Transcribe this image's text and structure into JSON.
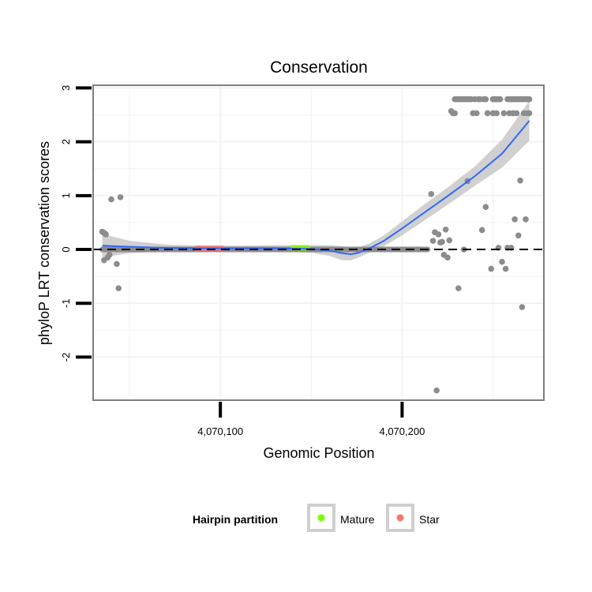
{
  "chart_data": {
    "type": "scatter",
    "title": "Conservation",
    "xlabel": "Genomic Position",
    "ylabel": "phyloP LRT conservation scores",
    "xlim": [
      4070030,
      4070278
    ],
    "ylim": [
      -2.8,
      3.05
    ],
    "x_ticks": [
      {
        "value": 4070100,
        "label": "4,070,100"
      },
      {
        "value": 4070200,
        "label": "4,070,200"
      }
    ],
    "y_ticks": [
      {
        "value": 3,
        "label": "3"
      },
      {
        "value": 2,
        "label": "2"
      },
      {
        "value": 1,
        "label": "1"
      },
      {
        "value": 0,
        "label": "0"
      },
      {
        "value": -1,
        "label": "-1"
      },
      {
        "value": -2,
        "label": "-2"
      }
    ],
    "grid": true,
    "reference_line": {
      "y": 0,
      "style": "dashed"
    },
    "colors": {
      "points": "#8c8c8c",
      "smooth": "#3366ff",
      "ribbon": "#c8c8c8",
      "mature": "#7cfc00",
      "star": "#f8766d",
      "panel_border": "#7f7f7f",
      "grid": "#f2f2f2"
    },
    "legend": {
      "title": "Hairpin partition",
      "position": "bottom",
      "entries": [
        {
          "label": "Mature",
          "color": "#7cfc00"
        },
        {
          "label": "Star",
          "color": "#f8766d"
        }
      ]
    },
    "partitions": [
      {
        "name": "Star",
        "x_start": 4070087,
        "x_end": 4070101,
        "y": 0.02,
        "color": "#f8766d"
      },
      {
        "name": "Mature",
        "x_start": 4070140,
        "x_end": 4070148,
        "y": 0.03,
        "color": "#7cfc00"
      }
    ],
    "points": [
      {
        "x": 4070035,
        "y": 0.33
      },
      {
        "x": 4070036,
        "y": 0.31
      },
      {
        "x": 4070037,
        "y": 0.28
      },
      {
        "x": 4070036,
        "y": -0.2
      },
      {
        "x": 4070038,
        "y": -0.15
      },
      {
        "x": 4070039,
        "y": -0.1
      },
      {
        "x": 4070040,
        "y": 0.93
      },
      {
        "x": 4070045,
        "y": 0.97
      },
      {
        "x": 4070043,
        "y": -0.27
      },
      {
        "x": 4070044,
        "y": -0.72
      },
      {
        "x": 4070043,
        "y": 0.0
      },
      {
        "x": 4070216,
        "y": 1.03
      },
      {
        "x": 4070217,
        "y": 0.16
      },
      {
        "x": 4070218,
        "y": 0.32
      },
      {
        "x": 4070219,
        "y": -2.62
      },
      {
        "x": 4070220,
        "y": 0.28
      },
      {
        "x": 4070221,
        "y": 0.13
      },
      {
        "x": 4070222,
        "y": 0.14
      },
      {
        "x": 4070223,
        "y": -0.1
      },
      {
        "x": 4070224,
        "y": 0.37
      },
      {
        "x": 4070225,
        "y": -0.15
      },
      {
        "x": 4070226,
        "y": 0.17
      },
      {
        "x": 4070227,
        "y": 2.57
      },
      {
        "x": 4070228,
        "y": 2.53
      },
      {
        "x": 4070229,
        "y": 2.53
      },
      {
        "x": 4070231,
        "y": -0.72
      },
      {
        "x": 4070234,
        "y": 0.0
      },
      {
        "x": 4070236,
        "y": 1.27
      },
      {
        "x": 4070239,
        "y": 2.53
      },
      {
        "x": 4070241,
        "y": 2.53
      },
      {
        "x": 4070244,
        "y": 0.36
      },
      {
        "x": 4070246,
        "y": 0.79
      },
      {
        "x": 4070247,
        "y": 2.53
      },
      {
        "x": 4070249,
        "y": -0.36
      },
      {
        "x": 4070250,
        "y": 2.53
      },
      {
        "x": 4070252,
        "y": 2.53
      },
      {
        "x": 4070253,
        "y": 0.03
      },
      {
        "x": 4070255,
        "y": -0.23
      },
      {
        "x": 4070256,
        "y": 2.53
      },
      {
        "x": 4070257,
        "y": -0.36
      },
      {
        "x": 4070258,
        "y": 0.03
      },
      {
        "x": 4070259,
        "y": 2.53
      },
      {
        "x": 4070260,
        "y": 0.03
      },
      {
        "x": 4070261,
        "y": 2.53
      },
      {
        "x": 4070262,
        "y": 0.56
      },
      {
        "x": 4070263,
        "y": 2.53
      },
      {
        "x": 4070264,
        "y": 0.26
      },
      {
        "x": 4070265,
        "y": 1.28
      },
      {
        "x": 4070266,
        "y": -1.07
      },
      {
        "x": 4070267,
        "y": 2.53
      },
      {
        "x": 4070268,
        "y": 0.56
      },
      {
        "x": 4070269,
        "y": 2.53
      },
      {
        "x": 4070270,
        "y": 2.53
      },
      {
        "x": 4070229,
        "y": 2.79
      },
      {
        "x": 4070230,
        "y": 2.79
      },
      {
        "x": 4070231,
        "y": 2.79
      },
      {
        "x": 4070232,
        "y": 2.79
      },
      {
        "x": 4070233,
        "y": 2.79
      },
      {
        "x": 4070234,
        "y": 2.79
      },
      {
        "x": 4070235,
        "y": 2.79
      },
      {
        "x": 4070236,
        "y": 2.79
      },
      {
        "x": 4070237,
        "y": 2.79
      },
      {
        "x": 4070238,
        "y": 2.79
      },
      {
        "x": 4070240,
        "y": 2.79
      },
      {
        "x": 4070242,
        "y": 2.79
      },
      {
        "x": 4070243,
        "y": 2.79
      },
      {
        "x": 4070245,
        "y": 2.79
      },
      {
        "x": 4070246,
        "y": 2.79
      },
      {
        "x": 4070250,
        "y": 2.79
      },
      {
        "x": 4070251,
        "y": 2.79
      },
      {
        "x": 4070252,
        "y": 2.79
      },
      {
        "x": 4070253,
        "y": 2.79
      },
      {
        "x": 4070254,
        "y": 2.79
      },
      {
        "x": 4070258,
        "y": 2.79
      },
      {
        "x": 4070259,
        "y": 2.79
      },
      {
        "x": 4070260,
        "y": 2.79
      },
      {
        "x": 4070261,
        "y": 2.79
      },
      {
        "x": 4070262,
        "y": 2.79
      },
      {
        "x": 4070263,
        "y": 2.79
      },
      {
        "x": 4070264,
        "y": 2.79
      },
      {
        "x": 4070265,
        "y": 2.79
      },
      {
        "x": 4070266,
        "y": 2.79
      },
      {
        "x": 4070267,
        "y": 2.79
      },
      {
        "x": 4070268,
        "y": 2.79
      },
      {
        "x": 4070269,
        "y": 2.79
      },
      {
        "x": 4070270,
        "y": 2.79
      }
    ],
    "zero_run": {
      "x_start": 4070035,
      "x_end": 4070214,
      "y": 0.0
    },
    "smooth": [
      {
        "x": 4070035,
        "y": 0.07,
        "lo": -0.15,
        "hi": 0.29
      },
      {
        "x": 4070050,
        "y": 0.05,
        "lo": -0.07,
        "hi": 0.16
      },
      {
        "x": 4070070,
        "y": 0.03,
        "lo": -0.04,
        "hi": 0.09
      },
      {
        "x": 4070090,
        "y": 0.02,
        "lo": -0.03,
        "hi": 0.07
      },
      {
        "x": 4070110,
        "y": 0.02,
        "lo": -0.03,
        "hi": 0.07
      },
      {
        "x": 4070130,
        "y": 0.02,
        "lo": -0.04,
        "hi": 0.08
      },
      {
        "x": 4070150,
        "y": 0.01,
        "lo": -0.06,
        "hi": 0.08
      },
      {
        "x": 4070160,
        "y": -0.02,
        "lo": -0.12,
        "hi": 0.08
      },
      {
        "x": 4070167,
        "y": -0.07,
        "lo": -0.2,
        "hi": 0.06
      },
      {
        "x": 4070172,
        "y": -0.09,
        "lo": -0.2,
        "hi": 0.03
      },
      {
        "x": 4070176,
        "y": -0.06,
        "lo": -0.15,
        "hi": 0.04
      },
      {
        "x": 4070182,
        "y": 0.02,
        "lo": -0.06,
        "hi": 0.11
      },
      {
        "x": 4070190,
        "y": 0.16,
        "lo": 0.06,
        "hi": 0.26
      },
      {
        "x": 4070200,
        "y": 0.39,
        "lo": 0.26,
        "hi": 0.52
      },
      {
        "x": 4070212,
        "y": 0.68,
        "lo": 0.53,
        "hi": 0.83
      },
      {
        "x": 4070225,
        "y": 0.99,
        "lo": 0.83,
        "hi": 1.15
      },
      {
        "x": 4070240,
        "y": 1.36,
        "lo": 1.18,
        "hi": 1.54
      },
      {
        "x": 4070255,
        "y": 1.78,
        "lo": 1.52,
        "hi": 2.04
      },
      {
        "x": 4070270,
        "y": 2.39,
        "lo": 2.02,
        "hi": 2.76
      }
    ]
  }
}
